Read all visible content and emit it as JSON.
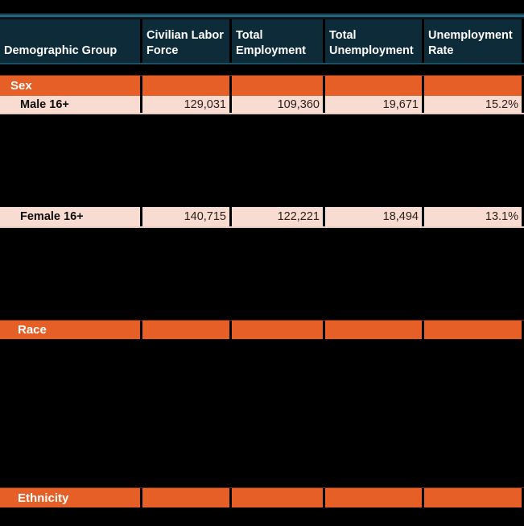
{
  "colors": {
    "background": "#000000",
    "header_fill": "#0e2b3a",
    "header_text": "#ffffff",
    "header_top_accent_line": "#276478",
    "section_fill": "#e65f26",
    "section_text": "#ffffff",
    "data_row_fill": "#f9dcd1",
    "data_row_text": "#2b201a"
  },
  "table": {
    "columns": [
      "Demographic Group",
      "Civilian Labor Force",
      "Total Employment",
      "Total Unemployment",
      "Unemployment Rate"
    ],
    "rows": {
      "sex_section": {
        "label": "Sex"
      },
      "male": {
        "label": "Male 16+",
        "civilian_labor_force": "129,031",
        "total_employment": "109,360",
        "total_unemployment": "19,671",
        "unemployment_rate": "15.2%"
      },
      "female": {
        "label": "Female 16+",
        "civilian_labor_force": "140,715",
        "total_employment": "122,221",
        "total_unemployment": "18,494",
        "unemployment_rate": "13.1%"
      },
      "race_section": {
        "label": "Race"
      },
      "ethnicity_section": {
        "label": "Ethnicity"
      }
    }
  }
}
